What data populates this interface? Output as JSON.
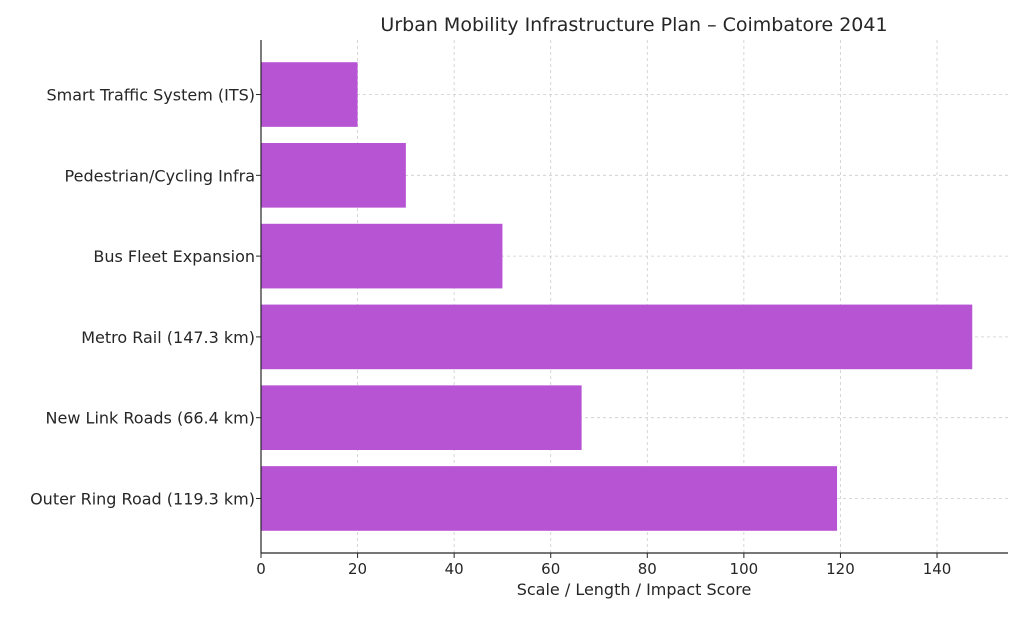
{
  "chart_data": {
    "type": "bar",
    "orientation": "horizontal",
    "title": "Urban Mobility Infrastructure Plan – Coimbatore 2041",
    "xlabel": "Scale / Length / Impact Score",
    "ylabel": "",
    "categories": [
      "Outer Ring Road (119.3 km)",
      "New Link Roads (66.4 km)",
      "Metro Rail (147.3 km)",
      "Bus Fleet Expansion",
      "Pedestrian/Cycling Infra",
      "Smart Traffic System (ITS)"
    ],
    "values": [
      119.3,
      66.4,
      147.3,
      50,
      30,
      20
    ],
    "xlim": [
      0,
      154.7
    ],
    "xticks": [
      0,
      20,
      40,
      60,
      80,
      100,
      120,
      140
    ],
    "grid": true,
    "bar_color": "#b654d4",
    "grid_color": "#cccccc"
  }
}
